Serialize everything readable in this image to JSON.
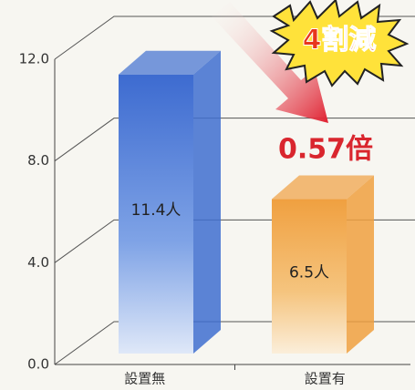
{
  "chart_data": {
    "type": "bar3d",
    "categories": [
      "設置無",
      "設置有"
    ],
    "values": [
      11.4,
      6.5
    ],
    "value_labels": [
      "11.4人",
      "6.5人"
    ],
    "colors": [
      "#3f6fd0",
      "#f0a040"
    ],
    "ylim": [
      0,
      12
    ],
    "yticks": [
      {
        "value": 0,
        "label": "0.0"
      },
      {
        "value": 4,
        "label": "4.0"
      },
      {
        "value": 8,
        "label": "8.0"
      },
      {
        "value": 12,
        "label": "12.0"
      }
    ],
    "grid": true,
    "annotations": [
      "4割減",
      "0.57倍"
    ]
  }
}
